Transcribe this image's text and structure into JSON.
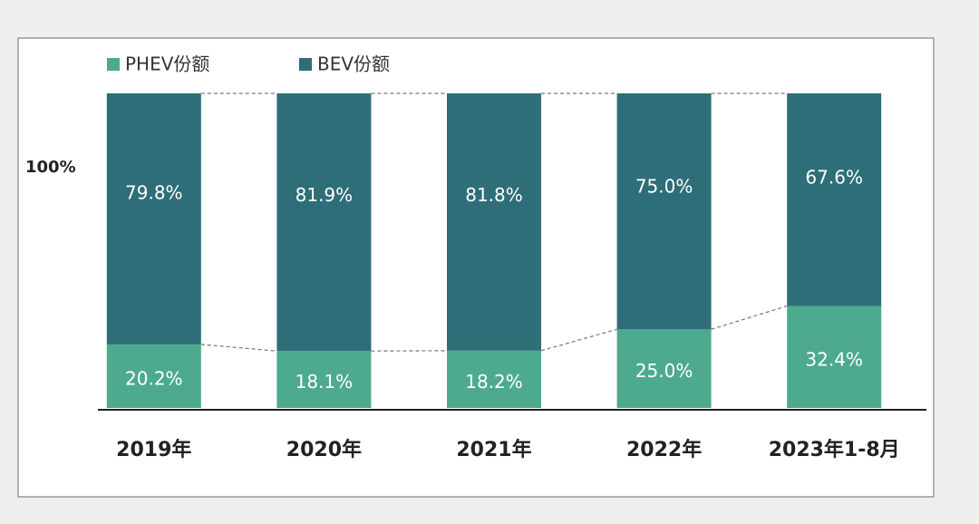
{
  "chart_data": {
    "type": "stacked_bar",
    "categories": [
      "2019年",
      "2020年",
      "2021年",
      "2022年",
      "2023年1-8月"
    ],
    "series": [
      {
        "name": "PHEV份额",
        "color": "#4daa8e",
        "values": [
          20.2,
          18.1,
          18.2,
          25.0,
          32.4
        ],
        "value_labels": [
          "20.2%",
          "18.1%",
          "18.2%",
          "25.0%",
          "32.4%"
        ]
      },
      {
        "name": "BEV份额",
        "color": "#2e6e78",
        "values": [
          79.8,
          81.9,
          81.8,
          75.0,
          67.6
        ],
        "value_labels": [
          "79.8%",
          "81.9%",
          "81.8%",
          "75.0%",
          "67.6%"
        ]
      }
    ],
    "annotation": "100%",
    "ylim": [
      0,
      100
    ]
  }
}
